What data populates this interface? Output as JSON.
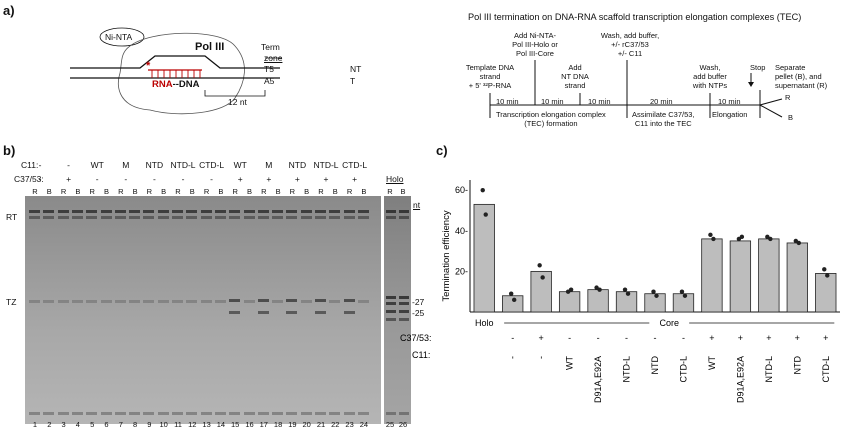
{
  "panel_a": {
    "letter": "a)",
    "ni_nta": "Ni-NTA",
    "pol3": "Pol III",
    "term_zone_1": "Term",
    "term_zone_2": "zone",
    "nt": "NT",
    "t": "T",
    "t5": "T5",
    "a5": "A5",
    "rna_dna": "RNA--DNA",
    "rna": "RNA",
    "dna": "--DNA",
    "twelve_nt": "12 nt",
    "star": "*",
    "timeline_title": "Pol III termination on DNA-RNA scaffold transcription elongation complexes (TEC)",
    "step1": [
      "Template DNA",
      "strand",
      "+ 5' ³²P-RNA"
    ],
    "step2": [
      "Add Ni-NTA-",
      "Pol III-Holo or",
      "Pol III-Core"
    ],
    "step3": [
      "Add",
      "NT DNA",
      "strand"
    ],
    "step4": [
      "Wash, add buffer,",
      "+/- rC37/53",
      "+/- C11"
    ],
    "step5": [
      "Wash,",
      "add buffer",
      "with NTPs"
    ],
    "step6": [
      "Stop"
    ],
    "step7": [
      "Separate",
      "pellet (B), and",
      "supernatant (R)"
    ],
    "times": [
      "10 min",
      "10 min",
      "10 min",
      "20 min",
      "10 min"
    ],
    "phase1": "Transcription elongation complex",
    "phase1b": "(TEC) formation",
    "phase2": "Assimilate C37/53,",
    "phase2b": "C11 into the TEC",
    "phase3": "Elongation",
    "r_label": "R",
    "b_label": "B"
  },
  "panel_b": {
    "letter": "b)",
    "c11_label": "C11:",
    "c3753_label": "C37/53:",
    "holo": "Holo",
    "c11_values": [
      "-",
      "-",
      "WT",
      "M",
      "NTD",
      "NTD-L",
      "CTD-L",
      "WT",
      "M",
      "NTD",
      "NTD-L",
      "CTD-L"
    ],
    "c3753_values": [
      "-",
      "+",
      "-",
      "-",
      "-",
      "-",
      "-",
      "+",
      "+",
      "+",
      "+",
      "+"
    ],
    "rb": [
      "R",
      "B"
    ],
    "rt": "RT",
    "tz": "TZ",
    "nt": "nt",
    "size_27": "-27",
    "size_25": "-25",
    "lanes": [
      "1",
      "2",
      "3",
      "4",
      "5",
      "6",
      "7",
      "8",
      "9",
      "10",
      "11",
      "12",
      "13",
      "14",
      "15",
      "16",
      "17",
      "18",
      "19",
      "20",
      "21",
      "22",
      "23",
      "24",
      "25",
      "26"
    ]
  },
  "panel_c": {
    "letter": "c)"
  },
  "chart_data": {
    "type": "bar",
    "title": "",
    "ylabel": "Termination efficiency",
    "xlabel": "",
    "ylim": [
      0,
      65
    ],
    "yticks": [
      20,
      40,
      60
    ],
    "ytick_labels": [
      "20-",
      "40-",
      "60-"
    ],
    "categories": [
      "Holo",
      "-/-",
      "+/-",
      "-/WT",
      "-/D91A,E92A",
      "-/NTD-L",
      "-/NTD",
      "-/CTD-L",
      "+/WT",
      "+/D91A,E92A",
      "+/NTD-L",
      "+/NTD",
      "+/CTD-L"
    ],
    "values": [
      53,
      8,
      20,
      10,
      11,
      10,
      9,
      9,
      36,
      35,
      36,
      34,
      19
    ],
    "points": [
      [
        60,
        48
      ],
      [
        9,
        6
      ],
      [
        23,
        17
      ],
      [
        10,
        11
      ],
      [
        12,
        11
      ],
      [
        11,
        9
      ],
      [
        10,
        8
      ],
      [
        10,
        8
      ],
      [
        38,
        36
      ],
      [
        36,
        37
      ],
      [
        37,
        36
      ],
      [
        35,
        34
      ],
      [
        21,
        18
      ]
    ],
    "group_label_holo": "Holo",
    "group_label_core": "Core",
    "row_c3753_label": "C37/53:",
    "row_c11_label": "C11:",
    "c3753_row": [
      "",
      "-",
      "+",
      "-",
      "-",
      "-",
      "-",
      "-",
      "+",
      "+",
      "+",
      "+",
      "+"
    ],
    "c11_row": [
      "",
      "-",
      "-",
      "WT",
      "D91A,E92A",
      "NTD-L",
      "NTD",
      "CTD-L",
      "WT",
      "D91A,E92A",
      "NTD-L",
      "NTD",
      "CTD-L"
    ],
    "bar_color": "#bdbdbd"
  }
}
